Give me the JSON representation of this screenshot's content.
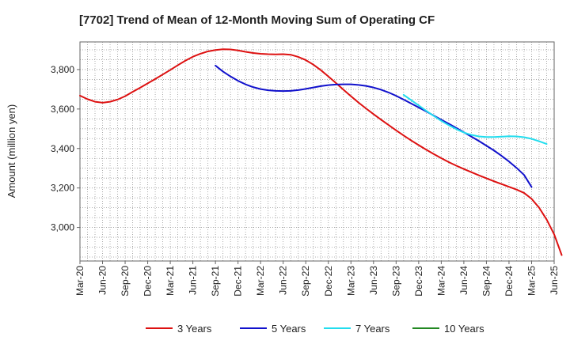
{
  "chart_data": {
    "type": "line",
    "title": "[7702]  Trend of Mean of 12-Month Moving Sum of Operating CF",
    "xlabel": "",
    "ylabel": "Amount (million yen)",
    "ylim": [
      2830,
      3940
    ],
    "yticks": [
      3000,
      3200,
      3400,
      3600,
      3800
    ],
    "ytick_labels": [
      "3,000",
      "3,200",
      "3,400",
      "3,600",
      "3,800"
    ],
    "x_tick_labels": [
      "Mar-20",
      "Jun-20",
      "Sep-20",
      "Dec-20",
      "Mar-21",
      "Jun-21",
      "Sep-21",
      "Dec-21",
      "Mar-22",
      "Jun-22",
      "Sep-22",
      "Dec-22",
      "Mar-23",
      "Jun-23",
      "Sep-23",
      "Dec-23",
      "Mar-24",
      "Jun-24",
      "Sep-24",
      "Dec-24",
      "Mar-25",
      "Jun-25"
    ],
    "x_range_months": [
      0,
      63
    ],
    "grid": true,
    "legend_position": "bottom",
    "series": [
      {
        "name": "3 Years",
        "color": "#dd1111",
        "points": [
          [
            0,
            3668
          ],
          [
            1,
            3650
          ],
          [
            2,
            3637
          ],
          [
            3,
            3632
          ],
          [
            4,
            3637
          ],
          [
            5,
            3648
          ],
          [
            6,
            3665
          ],
          [
            7,
            3687
          ],
          [
            8,
            3708
          ],
          [
            9,
            3730
          ],
          [
            10,
            3752
          ],
          [
            11,
            3775
          ],
          [
            12,
            3798
          ],
          [
            13,
            3822
          ],
          [
            14,
            3845
          ],
          [
            15,
            3865
          ],
          [
            16,
            3880
          ],
          [
            17,
            3892
          ],
          [
            18,
            3899
          ],
          [
            19,
            3903
          ],
          [
            20,
            3902
          ],
          [
            21,
            3897
          ],
          [
            22,
            3890
          ],
          [
            23,
            3884
          ],
          [
            24,
            3880
          ],
          [
            25,
            3878
          ],
          [
            26,
            3877
          ],
          [
            27,
            3878
          ],
          [
            28,
            3875
          ],
          [
            29,
            3864
          ],
          [
            30,
            3848
          ],
          [
            31,
            3825
          ],
          [
            32,
            3797
          ],
          [
            33,
            3765
          ],
          [
            34,
            3732
          ],
          [
            35,
            3698
          ],
          [
            36,
            3665
          ],
          [
            37,
            3633
          ],
          [
            38,
            3603
          ],
          [
            39,
            3574
          ],
          [
            40,
            3546
          ],
          [
            41,
            3519
          ],
          [
            42,
            3492
          ],
          [
            43,
            3466
          ],
          [
            44,
            3441
          ],
          [
            45,
            3417
          ],
          [
            46,
            3394
          ],
          [
            47,
            3372
          ],
          [
            48,
            3351
          ],
          [
            49,
            3331
          ],
          [
            50,
            3313
          ],
          [
            51,
            3296
          ],
          [
            52,
            3280
          ],
          [
            53,
            3264
          ],
          [
            54,
            3249
          ],
          [
            55,
            3234
          ],
          [
            56,
            3220
          ],
          [
            57,
            3206
          ],
          [
            58,
            3192
          ],
          [
            59,
            3175
          ],
          [
            60,
            3145
          ],
          [
            61,
            3100
          ],
          [
            62,
            3040
          ],
          [
            63,
            2965
          ],
          [
            64,
            2860
          ]
        ]
      },
      {
        "name": "5 Years",
        "color": "#1111cc",
        "points": [
          [
            18,
            3820
          ],
          [
            19,
            3790
          ],
          [
            20,
            3765
          ],
          [
            21,
            3743
          ],
          [
            22,
            3725
          ],
          [
            23,
            3711
          ],
          [
            24,
            3701
          ],
          [
            25,
            3695
          ],
          [
            26,
            3692
          ],
          [
            27,
            3691
          ],
          [
            28,
            3692
          ],
          [
            29,
            3696
          ],
          [
            30,
            3702
          ],
          [
            31,
            3709
          ],
          [
            32,
            3716
          ],
          [
            33,
            3721
          ],
          [
            34,
            3724
          ],
          [
            35,
            3725
          ],
          [
            36,
            3725
          ],
          [
            37,
            3722
          ],
          [
            38,
            3717
          ],
          [
            39,
            3709
          ],
          [
            40,
            3698
          ],
          [
            41,
            3684
          ],
          [
            42,
            3667
          ],
          [
            43,
            3648
          ],
          [
            44,
            3628
          ],
          [
            45,
            3608
          ],
          [
            46,
            3588
          ],
          [
            47,
            3567
          ],
          [
            48,
            3546
          ],
          [
            49,
            3525
          ],
          [
            50,
            3504
          ],
          [
            51,
            3482
          ],
          [
            52,
            3460
          ],
          [
            53,
            3438
          ],
          [
            54,
            3414
          ],
          [
            55,
            3390
          ],
          [
            56,
            3363
          ],
          [
            57,
            3334
          ],
          [
            58,
            3302
          ],
          [
            59,
            3266
          ],
          [
            60,
            3205
          ]
        ]
      },
      {
        "name": "7 Years",
        "color": "#22ddee",
        "points": [
          [
            43,
            3672
          ],
          [
            44,
            3645
          ],
          [
            45,
            3618
          ],
          [
            46,
            3591
          ],
          [
            47,
            3565
          ],
          [
            48,
            3540
          ],
          [
            49,
            3518
          ],
          [
            50,
            3498
          ],
          [
            51,
            3481
          ],
          [
            52,
            3469
          ],
          [
            53,
            3461
          ],
          [
            54,
            3458
          ],
          [
            55,
            3458
          ],
          [
            56,
            3460
          ],
          [
            57,
            3462
          ],
          [
            58,
            3461
          ],
          [
            59,
            3457
          ],
          [
            60,
            3449
          ],
          [
            61,
            3437
          ],
          [
            62,
            3423
          ]
        ]
      },
      {
        "name": "10 Years",
        "color": "#228822",
        "points": []
      }
    ]
  }
}
